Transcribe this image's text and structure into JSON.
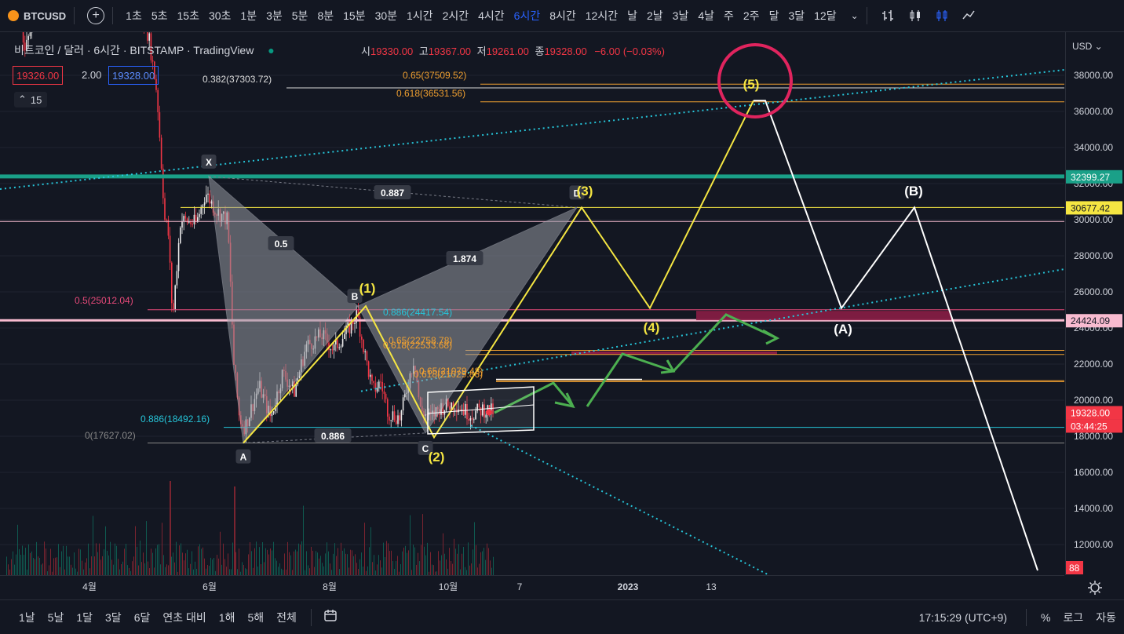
{
  "toolbar": {
    "symbol": "BTCUSD",
    "timeframes": [
      "1초",
      "5초",
      "15초",
      "30초",
      "1분",
      "3분",
      "5분",
      "8분",
      "15분",
      "30분",
      "1시간",
      "2시간",
      "4시간",
      "6시간",
      "8시간",
      "12시간",
      "날",
      "2날",
      "3날",
      "4날",
      "주",
      "2주",
      "달",
      "3달",
      "12달"
    ],
    "active_timeframe": "6시간"
  },
  "legend": {
    "title": "비트코인 / 달러 · 6시간 · BITSTAMP · TradingView",
    "open_label": "시",
    "open": "19330.00",
    "high_label": "고",
    "high": "19367.00",
    "low_label": "저",
    "low": "19261.00",
    "close_label": "종",
    "close": "19328.00",
    "change": "−6.00 (−0.03%)",
    "bid": "19326.00",
    "spread": "2.00",
    "ask": "19328.00",
    "indicator_count": "15"
  },
  "colors": {
    "background": "#131722",
    "up": "#089981",
    "down": "#f23645",
    "wave": "#f5e642",
    "abc": "#ffffff",
    "fib_orange": "#f0a030",
    "teal": "#1aa088",
    "pink": "#f8bbd0",
    "magenta": "#c2185b"
  },
  "chart_data": {
    "type": "candlestick",
    "title": "비트코인 / 달러 · 6시간 · BITSTAMP",
    "y_axis": {
      "ticks": [
        "38000.00",
        "36000.00",
        "34000.00",
        "32000.00",
        "30000.00",
        "28000.00",
        "26000.00",
        "24000.00",
        "22000.00",
        "20000.00",
        "18000.00",
        "16000.00",
        "14000.00",
        "12000.00"
      ],
      "range": [
        10800,
        39200
      ],
      "currency": "USD"
    },
    "x_axis": {
      "ticks": [
        "4월",
        "6월",
        "8월",
        "10월",
        "7",
        "2023",
        "13"
      ]
    },
    "price_labels": [
      {
        "value": "32399.27",
        "kind": "teal"
      },
      {
        "value": "30677.42",
        "kind": "yellow"
      },
      {
        "value": "24424.09",
        "kind": "pink"
      },
      {
        "value": "19328.00",
        "kind": "red"
      },
      {
        "value": "03:44:25",
        "kind": "red"
      }
    ],
    "volume_label": "88",
    "harmonic_points": [
      {
        "label": "X",
        "price": 32399
      },
      {
        "label": "A",
        "price": 17627
      },
      {
        "label": "B",
        "price": 25211
      },
      {
        "label": "C",
        "price": 18180
      },
      {
        "label": "D",
        "price": 30677
      }
    ],
    "harmonic_ratios": [
      "0.5",
      "0.887",
      "1.874",
      "0.886"
    ],
    "elliott_wave": [
      {
        "label": "(1)",
        "price": 25211
      },
      {
        "label": "(2)",
        "price": 17940
      },
      {
        "label": "(3)",
        "price": 30677
      },
      {
        "label": "(4)",
        "price": 25100
      },
      {
        "label": "(5)",
        "price": 36600
      }
    ],
    "correction_wave": [
      {
        "label": "(A)",
        "price": 25100
      },
      {
        "label": "(B)",
        "price": 30677
      }
    ],
    "fib_levels": [
      {
        "label": "0.382(37303.72)",
        "price": 37303.72
      },
      {
        "label": "0.65(37509.52)",
        "price": 37509.52
      },
      {
        "label": "0.618(36531.56)",
        "price": 36531.56
      },
      {
        "label": "0.5(25012.04)",
        "price": 25012.04
      },
      {
        "label": "0.886(24417.54)",
        "price": 24417.54
      },
      {
        "label": "0.65(22758.78)",
        "price": 22758.78
      },
      {
        "label": "0.618(22533.68)",
        "price": 22533.68
      },
      {
        "label": "0.65(21079.48)",
        "price": 21079.48
      },
      {
        "label": "0.618(21029.86)",
        "price": 21029.86
      },
      {
        "label": "0.886(18492.16)",
        "price": 18492.16
      },
      {
        "label": "0(17627.02)",
        "price": 17627.02
      }
    ]
  },
  "bottom": {
    "ranges": [
      "1날",
      "5날",
      "1달",
      "3달",
      "6달",
      "연초 대비",
      "1해",
      "5해",
      "전체"
    ],
    "time": "17:15:29 (UTC+9)",
    "percent": "%",
    "log": "로그",
    "auto": "자동"
  }
}
